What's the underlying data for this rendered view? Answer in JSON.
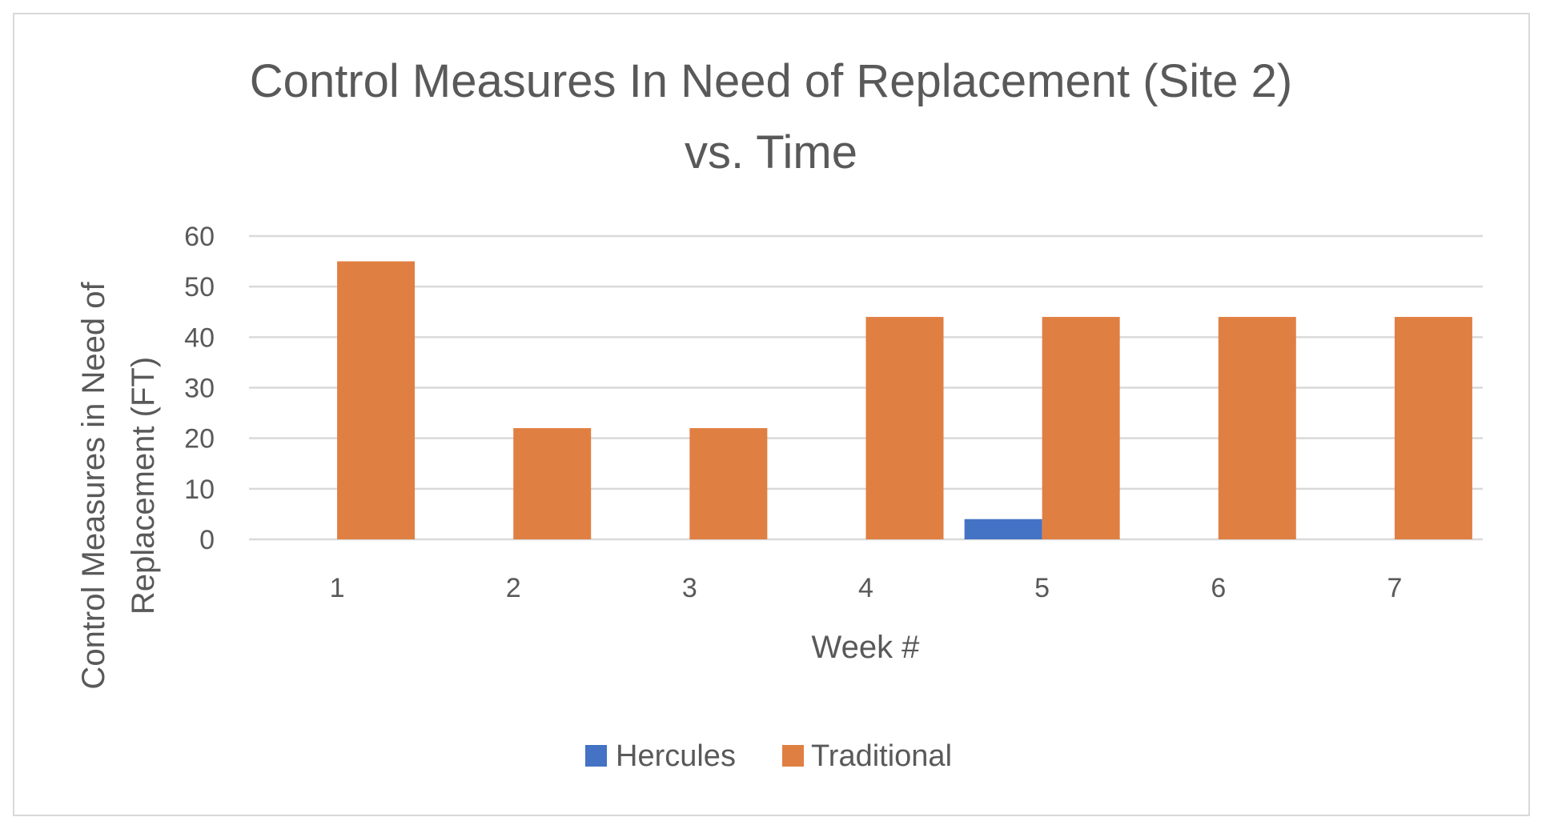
{
  "chart_data": {
    "type": "bar",
    "title": "Control Measures In Need of Replacement (Site 2)",
    "title_line2": "vs. Time",
    "xlabel": "Week #",
    "ylabel_line1": "Control Measures in Need of",
    "ylabel_line2": "Replacement (FT)",
    "categories": [
      "1",
      "2",
      "3",
      "4",
      "5",
      "6",
      "7"
    ],
    "ylim": [
      0,
      60
    ],
    "yticks": [
      0,
      10,
      20,
      30,
      40,
      50,
      60
    ],
    "grid": true,
    "legend_position": "bottom",
    "series": [
      {
        "name": "Hercules",
        "color": "#4472C4",
        "values": [
          0,
          0,
          0,
          0,
          4,
          0,
          0
        ]
      },
      {
        "name": "Traditional",
        "color": "#E07F42",
        "values": [
          55,
          22,
          22,
          44,
          44,
          44,
          44
        ]
      }
    ]
  }
}
